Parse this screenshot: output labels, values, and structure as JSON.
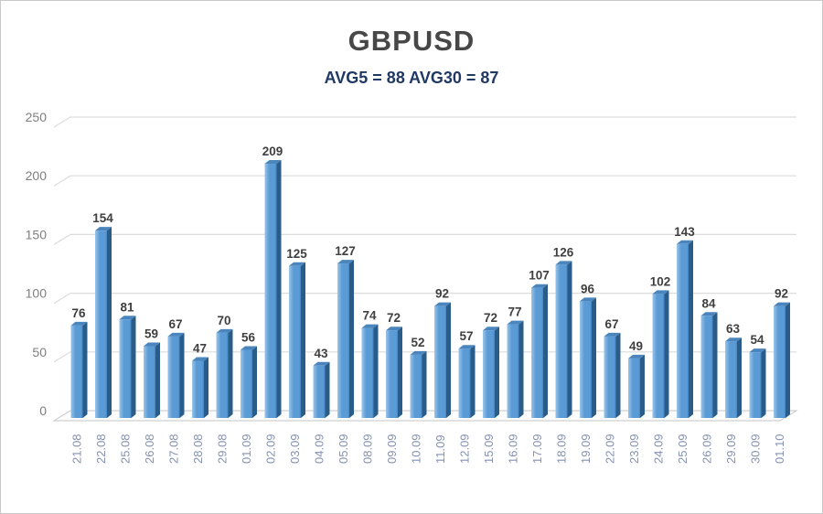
{
  "window": {
    "background": "#ffffff",
    "border_color": "#c9c9c9"
  },
  "chart_data": {
    "type": "bar",
    "title": "GBPUSD",
    "subtitle": "AVG5 = 88 AVG30 = 87",
    "categories": [
      "21.08",
      "22.08",
      "25.08",
      "26.08",
      "27.08",
      "28.08",
      "29.08",
      "01.09",
      "02.09",
      "03.09",
      "04.09",
      "05.09",
      "08.09",
      "09.09",
      "10.09",
      "11.09",
      "12.09",
      "15.09",
      "16.09",
      "17.09",
      "18.09",
      "19.09",
      "22.09",
      "23.09",
      "24.09",
      "25.09",
      "26.09",
      "29.09",
      "30.09",
      "01.10"
    ],
    "values": [
      76,
      154,
      81,
      59,
      67,
      47,
      70,
      56,
      209,
      125,
      43,
      127,
      74,
      72,
      52,
      92,
      57,
      72,
      77,
      107,
      126,
      96,
      67,
      49,
      102,
      143,
      84,
      63,
      54,
      92
    ],
    "xlabel": "",
    "ylabel": "",
    "ylim": [
      0,
      250
    ],
    "yticks": [
      0,
      50,
      100,
      150,
      200,
      250
    ],
    "grid": true,
    "legend": false,
    "effect": "3d-cylinder-column",
    "style": {
      "title_color": "#474747",
      "subtitle_color": "#203864",
      "bar_front_light": "#9cc5ea",
      "bar_front_mid": "#5b9bd5",
      "bar_front_dark": "#4586c4",
      "bar_side": "#2a5c8a",
      "bar_top": "#4a85bd",
      "gridline_color": "#dcdcdc",
      "floor_fill": "#fcfcfc",
      "floor_stroke": "#c6c6c6",
      "value_label_color": "#3f3f3f",
      "ytick_color": "#7f7f7f",
      "xtick_color": "#8491b1"
    }
  }
}
